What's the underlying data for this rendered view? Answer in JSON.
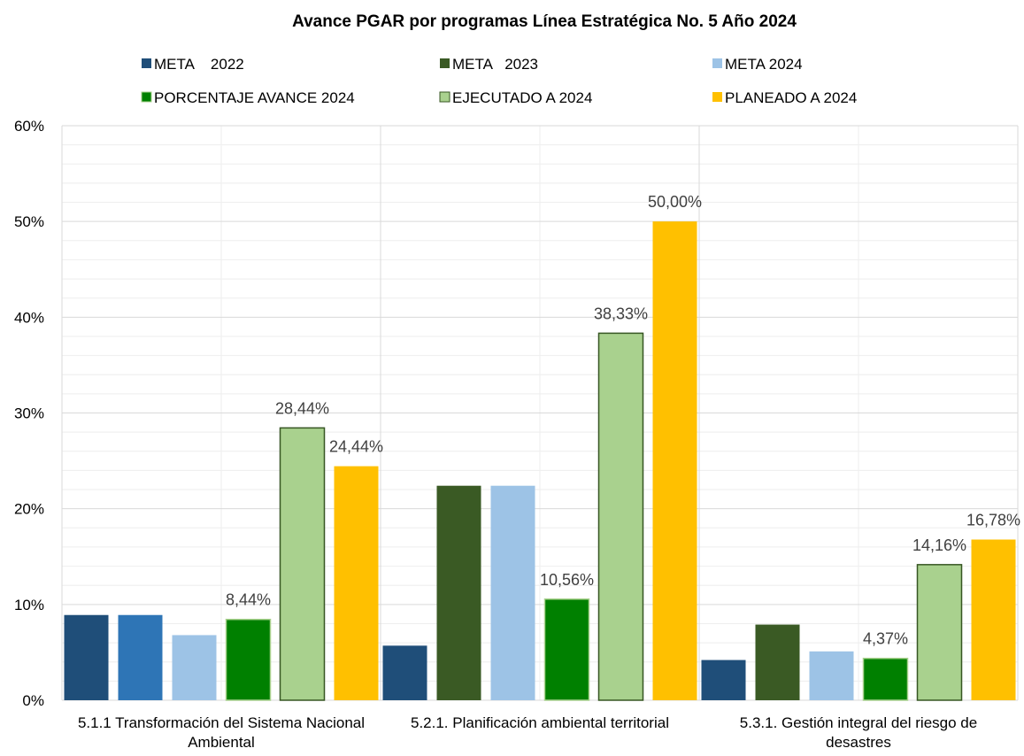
{
  "chart_data": {
    "type": "bar",
    "title": "Avance PGAR por programas Línea Estratégica No. 5 Año 2024",
    "categories": [
      "5.1.1 Transformación del Sistema Nacional Ambiental",
      "5.2.1. Planificación ambiental territorial",
      "5.3.1. Gestión integral del riesgo de desastres"
    ],
    "series": [
      {
        "name": "META    2022",
        "color": "#1f4e79",
        "values": [
          8.9,
          5.7,
          4.2
        ]
      },
      {
        "name": "META   2023",
        "color": "#3a5a24",
        "colors": [
          "#2e75b6",
          "#3a5a24",
          "#3a5a24"
        ],
        "values": [
          8.9,
          22.4,
          7.9
        ]
      },
      {
        "name": "META 2024",
        "color": "#9dc3e6",
        "values": [
          6.8,
          22.4,
          5.1
        ]
      },
      {
        "name": "PORCENTAJE AVANCE 2024",
        "color": "#008000",
        "values": [
          8.44,
          10.56,
          4.37
        ],
        "value_labels": [
          "8,44%",
          "10,56%",
          "4,37%"
        ]
      },
      {
        "name": "EJECUTADO A 2024",
        "color": "#a9d18e",
        "values": [
          28.44,
          38.33,
          14.16
        ],
        "value_labels": [
          "28,44%",
          "38,33%",
          "14,16%"
        ]
      },
      {
        "name": "PLANEADO A 2024",
        "color": "#ffc000",
        "values": [
          24.44,
          50,
          16.78
        ],
        "value_labels": [
          "24,44%",
          "50,00%",
          "16,78%"
        ]
      }
    ],
    "ylim": [
      0,
      60
    ],
    "yticks": [
      {
        "value": 0,
        "label": "0%"
      },
      {
        "value": 10,
        "label": "10%"
      },
      {
        "value": 20,
        "label": "20%"
      },
      {
        "value": 30,
        "label": "30%"
      },
      {
        "value": 40,
        "label": "40%"
      },
      {
        "value": 50,
        "label": "50%"
      },
      {
        "value": 60,
        "label": "60%"
      }
    ],
    "minor_yticks": [
      2,
      4,
      6,
      8,
      12,
      14,
      16,
      18,
      22,
      24,
      26,
      28,
      32,
      34,
      36,
      38,
      42,
      44,
      46,
      48,
      52,
      54,
      56,
      58
    ],
    "grid": true,
    "legend": "top"
  }
}
